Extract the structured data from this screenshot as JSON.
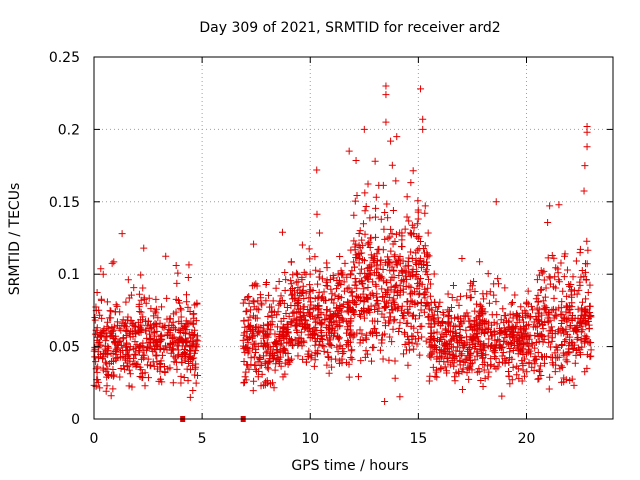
{
  "chart_data": {
    "type": "scatter",
    "title": "Day 309 of 2021, SRMTID for receiver ard2",
    "xlabel": "GPS time / hours",
    "ylabel": "SRMTID / TECUs",
    "xlim": [
      0,
      24
    ],
    "ylim": [
      0,
      0.25
    ],
    "xticks": [
      0,
      5,
      10,
      15,
      20
    ],
    "xtick_labels": [
      "0",
      "5",
      "10",
      "15",
      "20"
    ],
    "yticks": [
      0,
      0.05,
      0.1,
      0.15,
      0.2,
      0.25
    ],
    "ytick_labels": [
      "0",
      "0.05",
      "0.1",
      "0.15",
      "0.2",
      "0.25"
    ],
    "grid": true,
    "marker": "+",
    "color": "#e00000",
    "no_data_markers_x": [
      4.1,
      6.9
    ],
    "segments": [
      {
        "x0": 0.0,
        "x1": 4.8,
        "base": 0.052,
        "spread": 0.02,
        "count": 520
      },
      {
        "x0": 6.9,
        "x1": 9.0,
        "base": 0.055,
        "spread": 0.02,
        "count": 260
      },
      {
        "x0": 9.0,
        "x1": 12.0,
        "base": 0.07,
        "spread": 0.025,
        "count": 380
      },
      {
        "x0": 12.0,
        "x1": 15.5,
        "base": 0.09,
        "spread": 0.035,
        "count": 460
      },
      {
        "x0": 15.5,
        "x1": 20.5,
        "base": 0.055,
        "spread": 0.02,
        "count": 560
      },
      {
        "x0": 20.5,
        "x1": 23.0,
        "base": 0.065,
        "spread": 0.025,
        "count": 300
      }
    ],
    "peaks": [
      {
        "x": 1.3,
        "y": 0.128
      },
      {
        "x": 2.3,
        "y": 0.118
      },
      {
        "x": 3.8,
        "y": 0.106
      },
      {
        "x": 12.5,
        "y": 0.2
      },
      {
        "x": 13.0,
        "y": 0.178
      },
      {
        "x": 13.5,
        "y": 0.23
      },
      {
        "x": 13.5,
        "y": 0.224
      },
      {
        "x": 13.5,
        "y": 0.205
      },
      {
        "x": 14.0,
        "y": 0.195
      },
      {
        "x": 15.1,
        "y": 0.228
      },
      {
        "x": 15.2,
        "y": 0.207
      },
      {
        "x": 15.2,
        "y": 0.2
      },
      {
        "x": 10.3,
        "y": 0.172
      },
      {
        "x": 11.8,
        "y": 0.185
      },
      {
        "x": 18.6,
        "y": 0.15
      },
      {
        "x": 21.5,
        "y": 0.148
      },
      {
        "x": 22.8,
        "y": 0.202
      },
      {
        "x": 22.8,
        "y": 0.198
      },
      {
        "x": 22.8,
        "y": 0.188
      },
      {
        "x": 22.7,
        "y": 0.175
      }
    ]
  }
}
